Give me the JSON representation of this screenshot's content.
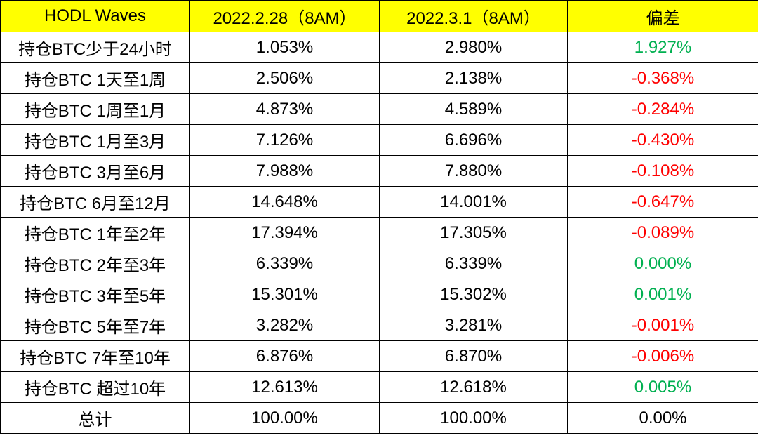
{
  "colors": {
    "header_background": "#ffff00",
    "positive": "#00b050",
    "negative": "#ff0000",
    "neutral": "#000000",
    "border": "#000000"
  },
  "header": {
    "col1": "HODL Waves",
    "col2": "2022.2.28（8AM）",
    "col3": "2022.3.1（8AM）",
    "col4": "偏差"
  },
  "rows": [
    {
      "label": "持仓BTC少于24小时",
      "v1": "1.053%",
      "v2": "2.980%",
      "diff": "1.927%",
      "sign": "pos"
    },
    {
      "label": "持仓BTC 1天至1周",
      "v1": "2.506%",
      "v2": "2.138%",
      "diff": "-0.368%",
      "sign": "neg"
    },
    {
      "label": "持仓BTC 1周至1月",
      "v1": "4.873%",
      "v2": "4.589%",
      "diff": "-0.284%",
      "sign": "neg"
    },
    {
      "label": "持仓BTC 1月至3月",
      "v1": "7.126%",
      "v2": "6.696%",
      "diff": "-0.430%",
      "sign": "neg"
    },
    {
      "label": "持仓BTC 3月至6月",
      "v1": "7.988%",
      "v2": "7.880%",
      "diff": "-0.108%",
      "sign": "neg"
    },
    {
      "label": "持仓BTC 6月至12月",
      "v1": "14.648%",
      "v2": "14.001%",
      "diff": "-0.647%",
      "sign": "neg"
    },
    {
      "label": "持仓BTC 1年至2年",
      "v1": "17.394%",
      "v2": "17.305%",
      "diff": "-0.089%",
      "sign": "neg"
    },
    {
      "label": "持仓BTC 2年至3年",
      "v1": "6.339%",
      "v2": "6.339%",
      "diff": "0.000%",
      "sign": "pos"
    },
    {
      "label": "持仓BTC 3年至5年",
      "v1": "15.301%",
      "v2": "15.302%",
      "diff": "0.001%",
      "sign": "pos"
    },
    {
      "label": "持仓BTC 5年至7年",
      "v1": "3.282%",
      "v2": "3.281%",
      "diff": "-0.001%",
      "sign": "neg"
    },
    {
      "label": "持仓BTC 7年至10年",
      "v1": "6.876%",
      "v2": "6.870%",
      "diff": "-0.006%",
      "sign": "neg"
    },
    {
      "label": "持仓BTC 超过10年",
      "v1": "12.613%",
      "v2": "12.618%",
      "diff": "0.005%",
      "sign": "pos"
    },
    {
      "label": "总计",
      "v1": "100.00%",
      "v2": "100.00%",
      "diff": "0.00%",
      "sign": "neu"
    }
  ]
}
